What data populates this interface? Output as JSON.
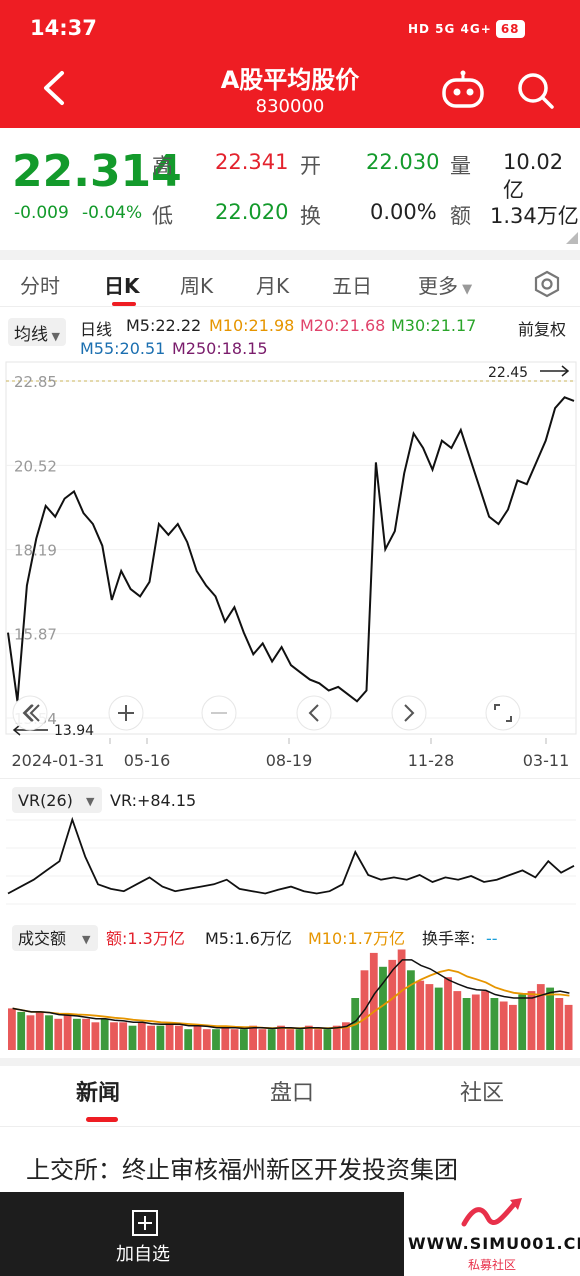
{
  "status": {
    "time": "14:37",
    "battery": "68",
    "icons": "HD 5G 4G+"
  },
  "header": {
    "title": "A股平均股价",
    "code": "830000"
  },
  "quote": {
    "price": "22.314",
    "change": "-0.009",
    "change_pct": "-0.04%",
    "high_label": "高",
    "high": "22.341",
    "open_label": "开",
    "open": "22.030",
    "vol_label": "量",
    "vol": "10.02亿",
    "low_label": "低",
    "low": "22.020",
    "turn_label": "换",
    "turn": "0.00%",
    "amt_label": "额",
    "amt": "1.34万亿"
  },
  "tabs": [
    "分时",
    "日K",
    "周K",
    "月K",
    "五日",
    "更多"
  ],
  "active_tab": "日K",
  "ma": {
    "selector": "均线",
    "period": "日线",
    "m5": "M5:22.22",
    "m10": "M10:21.98",
    "m20": "M20:21.68",
    "m30": "M30:21.17",
    "m55": "M55:20.51",
    "m250": "M250:18.15",
    "adjust": "前复权"
  },
  "price_chart": {
    "y_ticks": [
      "22.85",
      "20.52",
      "18.19",
      "15.87",
      "13.54"
    ],
    "max_label": "22.45",
    "min_label": "13.94",
    "x_ticks": [
      "2024-01-31",
      "05-16",
      "08-19",
      "11-28",
      "03-11"
    ]
  },
  "vr": {
    "selector": "VR(26)",
    "value": "VR:+84.15"
  },
  "vol_panel": {
    "selector": "成交额",
    "amt": "额:1.3万亿",
    "m5": "M5:1.6万亿",
    "m10": "M10:1.7万亿",
    "turnover_label": "换手率:",
    "turnover_value": "--"
  },
  "news_tabs": [
    "新闻",
    "盘口",
    "社区"
  ],
  "news_headline": "上交所：终止审核福州新区开发投资集团",
  "footer": {
    "add_label": "加自选"
  },
  "watermark": {
    "site": "WWW.SIMU001.CN",
    "sub": "私募社区"
  },
  "colors": {
    "brand": "#ee1d23",
    "up": "#e3222d",
    "down": "#139a2b"
  },
  "chart_data": [
    {
      "type": "line",
      "title": "",
      "x_ticks": [
        "2024-01-31",
        "05-16",
        "08-19",
        "11-28",
        "03-11"
      ],
      "y_ticks": [
        22.85,
        20.52,
        18.19,
        15.87,
        13.54
      ],
      "ylim": [
        13.54,
        22.85
      ],
      "series": [
        {
          "values": [
            15.9,
            14.0,
            17.2,
            18.5,
            19.4,
            19.1,
            19.6,
            19.8,
            19.2,
            18.9,
            18.3,
            16.8,
            17.6,
            17.1,
            16.9,
            17.3,
            18.9,
            18.6,
            18.9,
            18.4,
            17.6,
            17.2,
            16.9,
            16.2,
            16.6,
            15.9,
            15.3,
            15.6,
            15.1,
            15.5,
            15.0,
            14.8,
            14.6,
            14.5,
            14.3,
            14.4,
            14.2,
            14.0,
            14.3,
            20.6,
            18.2,
            18.7,
            20.3,
            21.4,
            21.0,
            20.4,
            21.2,
            21.0,
            21.5,
            20.7,
            19.9,
            19.1,
            18.9,
            19.3,
            20.1,
            20.0,
            20.6,
            21.2,
            22.1,
            22.4,
            22.3
          ]
        }
      ]
    },
    {
      "type": "line",
      "title": "",
      "series": [
        {
          "name": "VR(26)",
          "values": [
            40,
            55,
            70,
            90,
            110,
            200,
            120,
            60,
            50,
            45,
            60,
            75,
            55,
            45,
            50,
            55,
            60,
            70,
            50,
            45,
            40,
            48,
            55,
            45,
            40,
            45,
            60,
            130,
            80,
            70,
            75,
            70,
            80,
            65,
            75,
            70,
            78,
            65,
            70,
            80,
            90,
            75,
            110,
            85,
            100
          ]
        }
      ]
    },
    {
      "type": "bar",
      "title": "",
      "series": [
        {
          "name": "额",
          "values": [
            1.2,
            1.1,
            1.0,
            1.1,
            1.0,
            0.9,
            1.0,
            0.9,
            0.9,
            0.8,
            0.9,
            0.8,
            0.8,
            0.7,
            0.8,
            0.7,
            0.7,
            0.8,
            0.7,
            0.6,
            0.7,
            0.6,
            0.6,
            0.7,
            0.6,
            0.6,
            0.7,
            0.6,
            0.6,
            0.7,
            0.6,
            0.6,
            0.7,
            0.6,
            0.6,
            0.7,
            0.8,
            1.5,
            2.3,
            2.8,
            2.4,
            2.6,
            2.9,
            2.3,
            2.0,
            1.9,
            1.8,
            2.1,
            1.7,
            1.5,
            1.6,
            1.7,
            1.5,
            1.4,
            1.3,
            1.6,
            1.7,
            1.9,
            1.8,
            1.5,
            1.3
          ]
        }
      ]
    }
  ]
}
